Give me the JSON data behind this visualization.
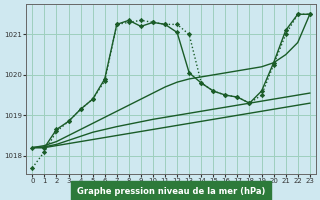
{
  "title": "Graphe pression niveau de la mer (hPa)",
  "bg_color": "#cfe8f0",
  "grid_color": "#9ecfbe",
  "line_color": "#1a5c28",
  "xlim": [
    -0.5,
    23.5
  ],
  "ylim": [
    1017.55,
    1021.75
  ],
  "yticks": [
    1018,
    1019,
    1020,
    1021
  ],
  "xticks": [
    0,
    1,
    2,
    3,
    4,
    5,
    6,
    7,
    8,
    9,
    10,
    11,
    12,
    13,
    14,
    15,
    16,
    17,
    18,
    19,
    20,
    21,
    22,
    23
  ],
  "series": [
    {
      "x": [
        0,
        1,
        2,
        3,
        4,
        5,
        6,
        7,
        8,
        9,
        10,
        11,
        12,
        13,
        14,
        15,
        16,
        17,
        18,
        19,
        20,
        21,
        22,
        23
      ],
      "y": [
        1018.2,
        1018.2,
        1018.25,
        1018.3,
        1018.35,
        1018.4,
        1018.45,
        1018.5,
        1018.55,
        1018.6,
        1018.65,
        1018.7,
        1018.75,
        1018.8,
        1018.85,
        1018.9,
        1018.95,
        1019.0,
        1019.05,
        1019.1,
        1019.15,
        1019.2,
        1019.25,
        1019.3
      ],
      "style": "solid",
      "marker": null,
      "linewidth": 1.0
    },
    {
      "x": [
        0,
        1,
        2,
        3,
        4,
        5,
        6,
        7,
        8,
        9,
        10,
        11,
        12,
        13,
        14,
        15,
        16,
        17,
        18,
        19,
        20,
        21,
        22,
        23
      ],
      "y": [
        1018.2,
        1018.22,
        1018.28,
        1018.38,
        1018.48,
        1018.58,
        1018.65,
        1018.72,
        1018.78,
        1018.84,
        1018.9,
        1018.95,
        1019.0,
        1019.05,
        1019.1,
        1019.15,
        1019.2,
        1019.25,
        1019.3,
        1019.35,
        1019.4,
        1019.45,
        1019.5,
        1019.55
      ],
      "style": "solid",
      "marker": null,
      "linewidth": 1.0
    },
    {
      "x": [
        0,
        1,
        2,
        3,
        4,
        5,
        6,
        7,
        8,
        9,
        10,
        11,
        12,
        13,
        14,
        15,
        16,
        17,
        18,
        19,
        20,
        21,
        22,
        23
      ],
      "y": [
        1018.2,
        1018.25,
        1018.35,
        1018.5,
        1018.65,
        1018.8,
        1018.95,
        1019.1,
        1019.25,
        1019.4,
        1019.55,
        1019.7,
        1019.82,
        1019.9,
        1019.95,
        1020.0,
        1020.05,
        1020.1,
        1020.15,
        1020.2,
        1020.3,
        1020.5,
        1020.8,
        1021.5
      ],
      "style": "solid",
      "marker": null,
      "linewidth": 1.0
    },
    {
      "x": [
        0,
        1,
        2,
        3,
        4,
        5,
        6,
        7,
        8,
        9,
        10,
        11,
        12,
        13,
        14,
        15,
        16,
        17,
        18,
        19,
        20,
        21,
        22,
        23
      ],
      "y": [
        1018.2,
        1018.2,
        1018.65,
        1018.85,
        1019.15,
        1019.4,
        1019.9,
        1021.25,
        1021.35,
        1021.2,
        1021.3,
        1021.25,
        1021.05,
        1020.05,
        1019.8,
        1019.6,
        1019.5,
        1019.45,
        1019.3,
        1019.6,
        1020.3,
        1021.1,
        1021.5,
        1021.5
      ],
      "style": "solid",
      "marker": "D",
      "linewidth": 1.0
    },
    {
      "x": [
        0,
        1,
        2,
        3,
        4,
        5,
        6,
        7,
        8,
        9,
        10,
        11,
        12,
        13,
        14,
        15,
        16,
        17,
        18,
        19,
        20,
        21,
        22,
        23
      ],
      "y": [
        1017.7,
        1018.1,
        1018.6,
        1018.85,
        1019.15,
        1019.4,
        1019.85,
        1021.25,
        1021.3,
        1021.35,
        1021.3,
        1021.25,
        1021.25,
        1021.0,
        1019.8,
        1019.6,
        1019.5,
        1019.45,
        1019.3,
        1019.5,
        1020.25,
        1021.0,
        1021.5,
        1021.5
      ],
      "style": "dotted",
      "marker": "D",
      "linewidth": 1.0
    }
  ]
}
